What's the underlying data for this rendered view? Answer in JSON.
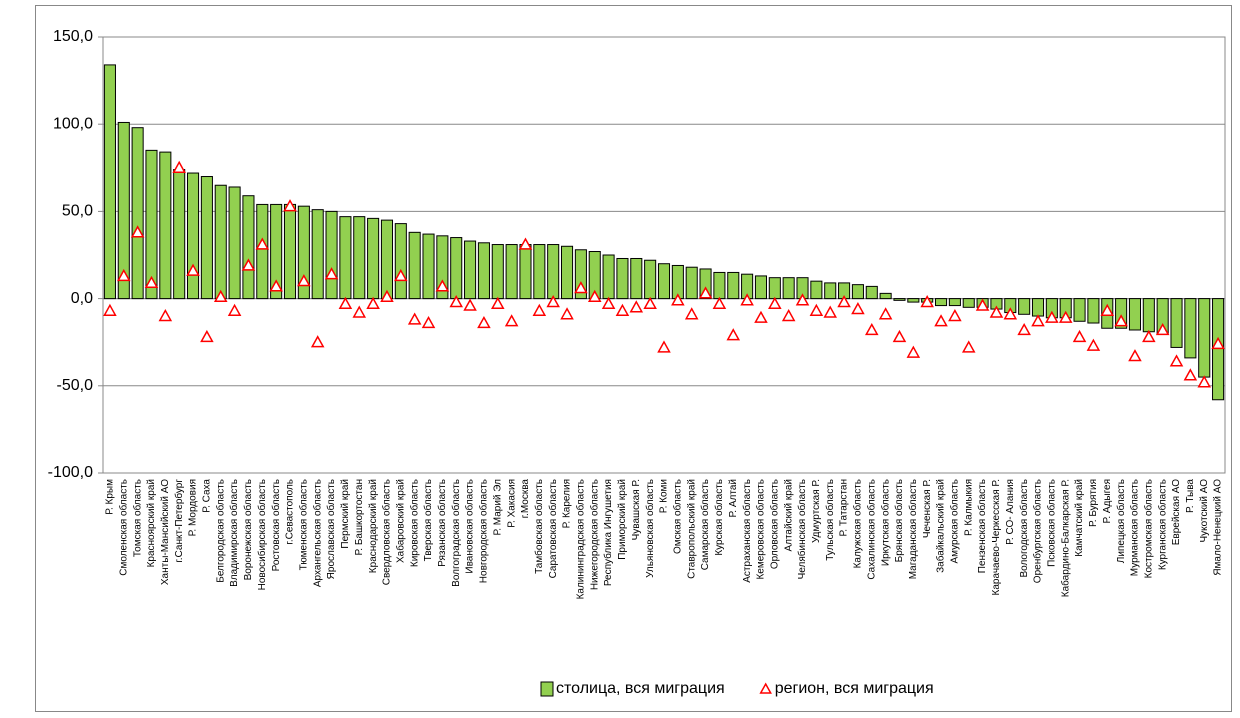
{
  "chart_data": {
    "type": "bar",
    "categories": [
      "Р. Крым",
      "Смоленская область",
      "Томская область",
      "Красноярский край",
      "Ханты-Мансийский АО",
      "г.Санкт-Петербург",
      "Р. Мордовия",
      "Р. Саха",
      "Белгородская область",
      "Владимирская область",
      "Воронежская область",
      "Новосибирская область",
      "Ростовская область",
      "г.Севастополь",
      "Тюменская область",
      "Архангельская область",
      "Ярославская область",
      "Пермский край",
      "Р. Башкортостан",
      "Краснодарский край",
      "Свердловская область",
      "Хабаровский край",
      "Кировская область",
      "Тверская область",
      "Рязанская область",
      "Волгоградская область",
      "Ивановская область",
      "Новгородская область",
      "Р. Марий Эл",
      "Р. Хакасия",
      "г.Москва",
      "Тамбовская область",
      "Саратовская область",
      "Р. Карелия",
      "Калининградская область",
      "Нижегородская область",
      "Республика Ингушетия",
      "Приморский край",
      "Чувашская Р.",
      "Ульяновская область",
      "Р. Коми",
      "Омская область",
      "Ставропольский край",
      "Самарская область",
      "Курская область",
      "Р. Алтай",
      "Астраханская область",
      "Кемеровская область",
      "Орловская область",
      "Алтайский край",
      "Челябинская область",
      "Удмуртская Р.",
      "Тульская область",
      "Р. Татарстан",
      "Калужская область",
      "Сахалинская область",
      "Иркутская область",
      "Брянская область",
      "Магаданская область",
      "Чеченская Р.",
      "Забайкальский край",
      "Амурская область",
      "Р. Калмыкия",
      "Пензенская область",
      "Карачаево-Черкесская Р.",
      "Р. СО- Алания",
      "Вологодская область",
      "Оренбургская область",
      "Псковская область",
      "Кабардино-Балкарская Р.",
      "Камчатский край",
      "Р. Бурятия",
      "Р. Адыгея",
      "Липецкая область",
      "Мурманская область",
      "Костромская область",
      "Курганская область",
      "Еврейская АО",
      "Р. Тыва",
      "Чукотский АО",
      "Ямало-Ненецкий АО"
    ],
    "series": [
      {
        "name": "столица, вся миграция",
        "type": "bar",
        "color": "#92d050",
        "values": [
          134,
          101,
          98,
          85,
          84,
          74,
          72,
          70,
          65,
          64,
          59,
          54,
          54,
          54,
          53,
          51,
          50,
          47,
          47,
          46,
          45,
          43,
          38,
          37,
          36,
          35,
          33,
          32,
          31,
          31,
          31,
          31,
          31,
          30,
          28,
          27,
          25,
          23,
          23,
          22,
          20,
          19,
          18,
          17,
          15,
          15,
          14,
          13,
          12,
          12,
          12,
          10,
          9,
          9,
          8,
          7,
          3,
          -1,
          -2,
          -2,
          -4,
          -4,
          -5,
          -5,
          -6,
          -8,
          -9,
          -10,
          -11,
          -11,
          -13,
          -14,
          -17,
          -17,
          -18,
          -19,
          -20,
          -28,
          -34,
          -45,
          -58
        ]
      },
      {
        "name": "регион, вся миграция",
        "type": "scatter",
        "color": "#ff0000",
        "values": [
          -7,
          13,
          38,
          9,
          -10,
          75,
          16,
          -22,
          1,
          -7,
          19,
          31,
          7,
          53,
          10,
          -25,
          14,
          -3,
          -8,
          -3,
          1,
          13,
          -12,
          -14,
          7,
          -2,
          -4,
          -14,
          -3,
          -13,
          31,
          -7,
          -2,
          -9,
          6,
          1,
          -3,
          -7,
          -5,
          -3,
          -28,
          -1,
          -9,
          3,
          -3,
          -21,
          -1,
          -11,
          -3,
          -10,
          -1,
          -7,
          -8,
          -2,
          -6,
          -18,
          -9,
          -22,
          -31,
          -2,
          -13,
          -10,
          -28,
          -4,
          -8,
          -9,
          -18,
          -13,
          -11,
          -11,
          -22,
          -27,
          -7,
          -13,
          -33,
          -22,
          -18,
          -36,
          -44,
          -48,
          -26
        ]
      }
    ],
    "ylim": [
      -100,
      150
    ],
    "yticks": [
      {
        "value": -100,
        "label": "-100,0"
      },
      {
        "value": -50,
        "label": "-50,0"
      },
      {
        "value": 0,
        "label": "0,0"
      },
      {
        "value": 50,
        "label": "50,0"
      },
      {
        "value": 100,
        "label": "100,0"
      },
      {
        "value": 150,
        "label": "150,0"
      }
    ],
    "grid": true,
    "legend": "bottom"
  }
}
